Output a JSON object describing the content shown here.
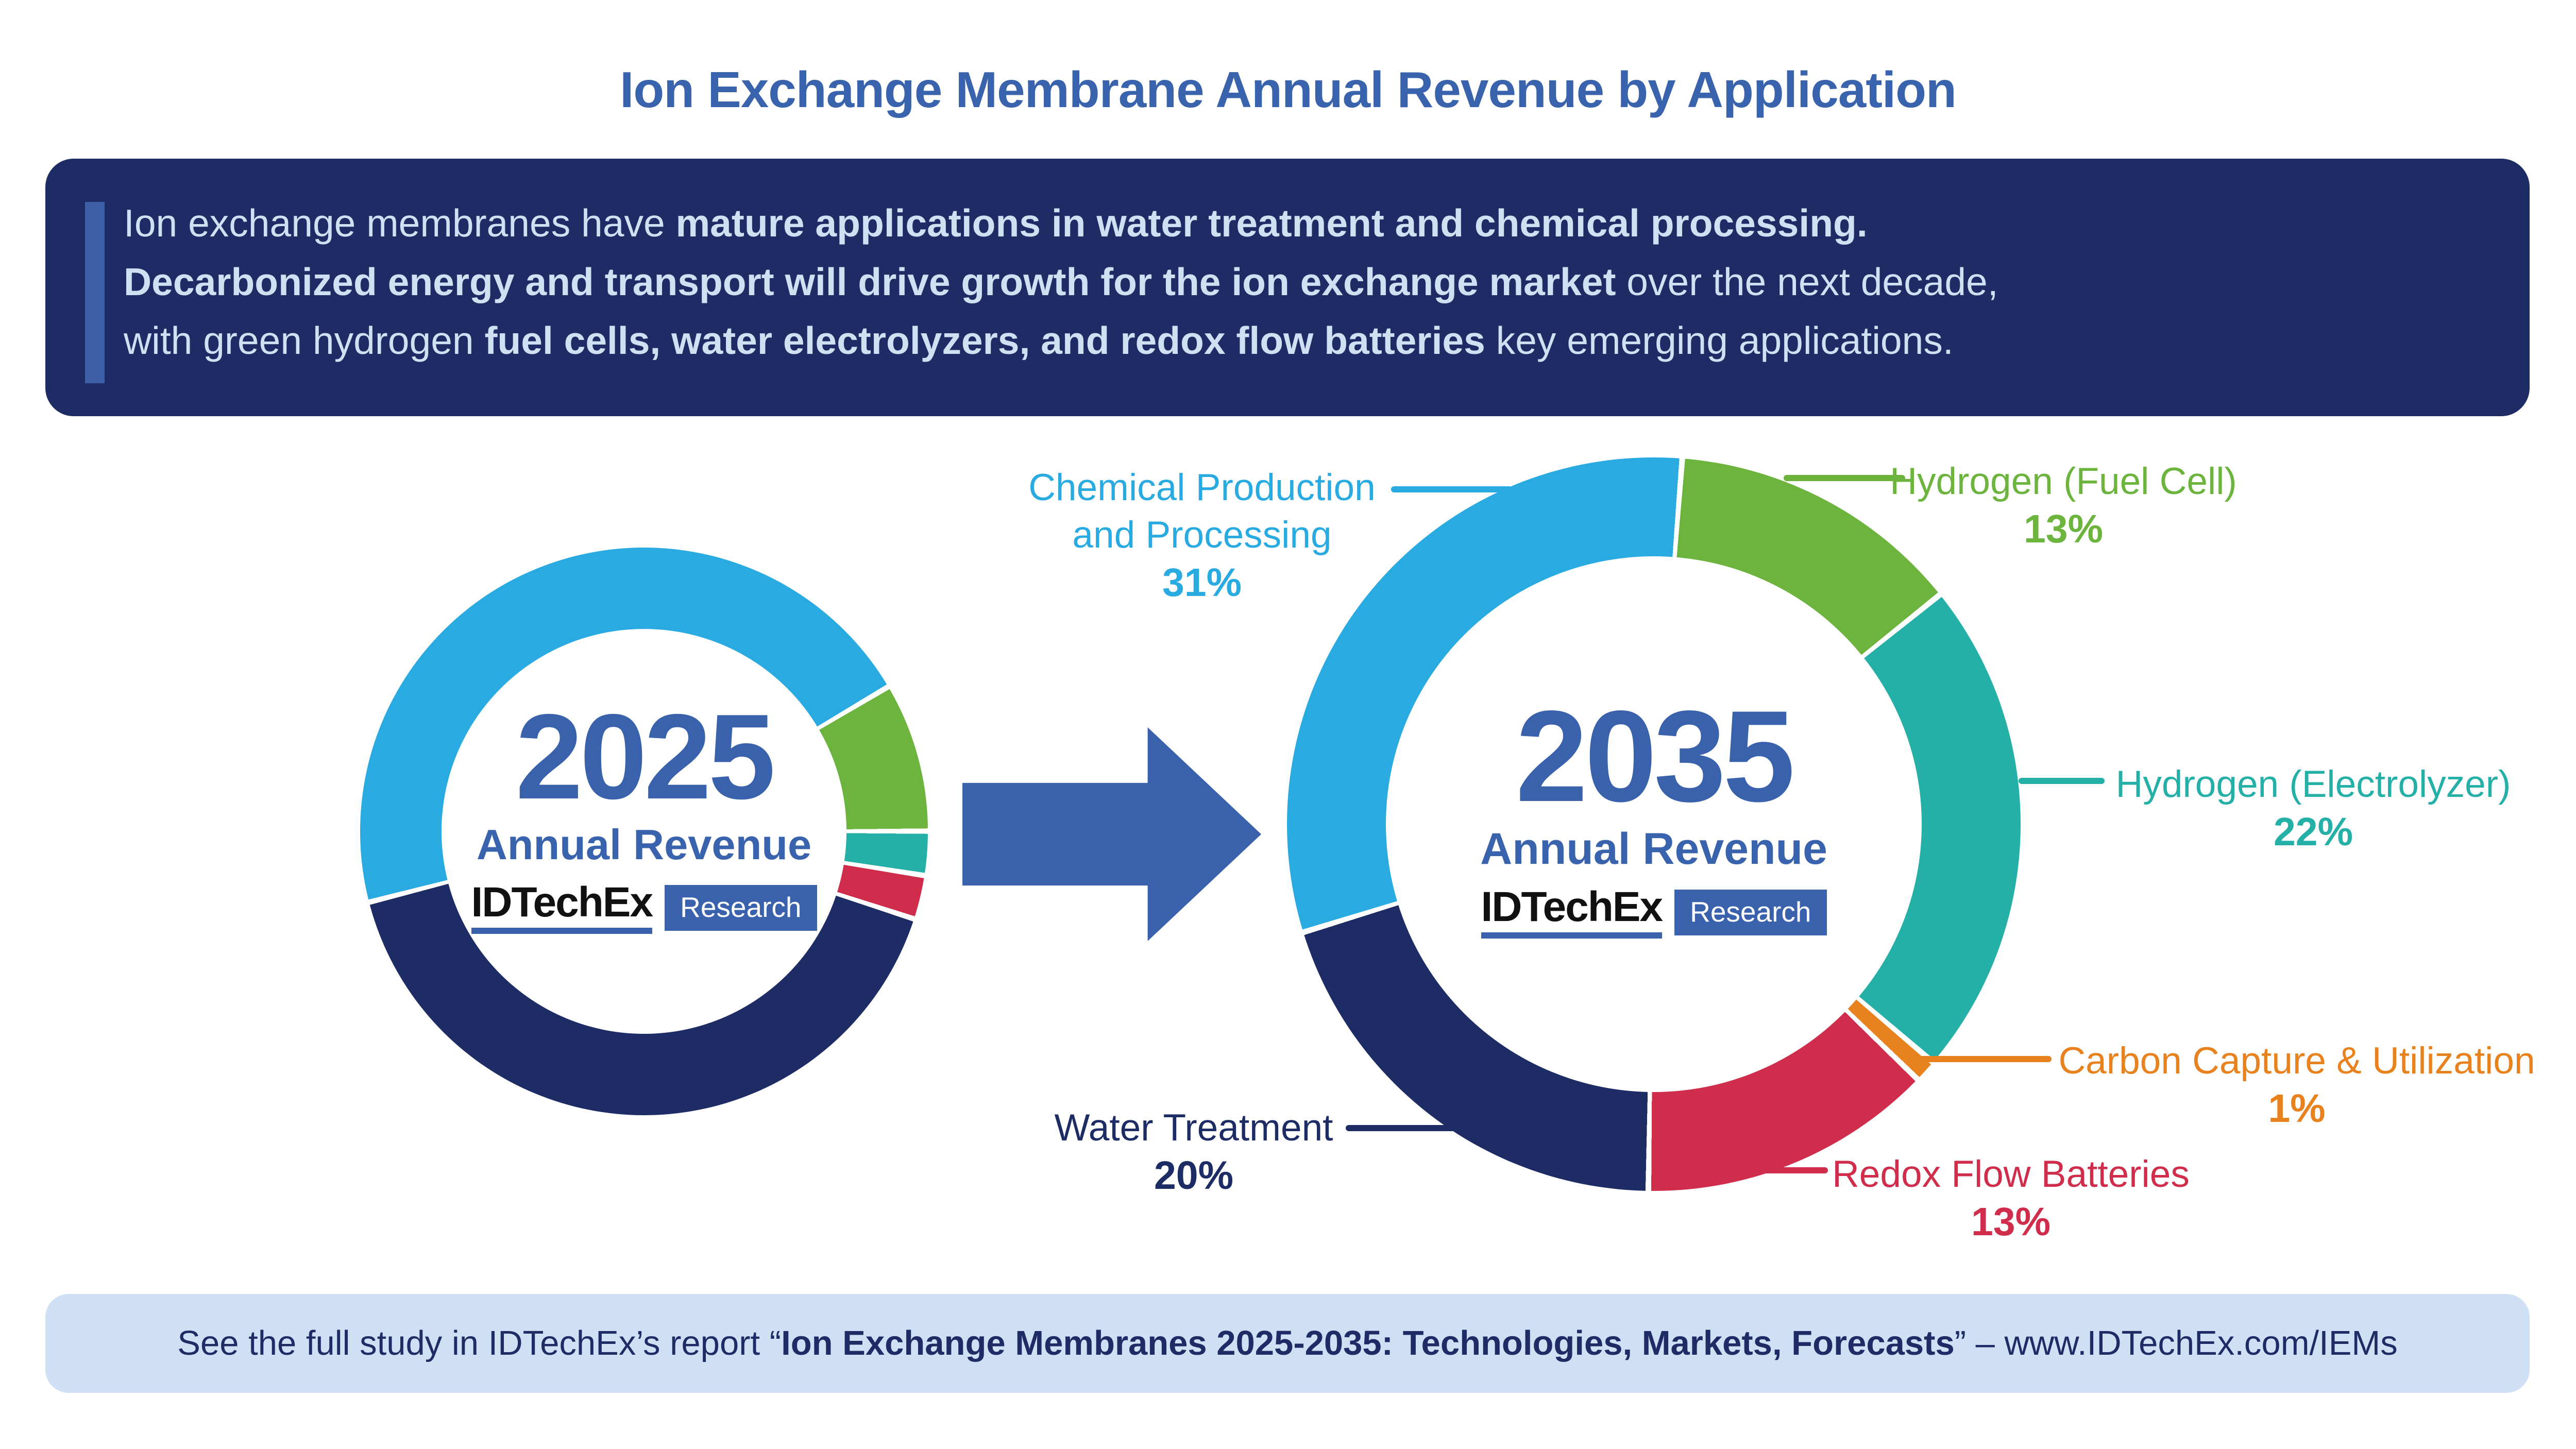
{
  "title": "Ion Exchange Membrane Annual Revenue by Application",
  "summary_box": {
    "background": "#1e2c66",
    "accent_color": "#3c5fa7",
    "text_color": "#cfe0f2",
    "lines": [
      {
        "runs": [
          {
            "text": "Ion exchange membranes have ",
            "bold": false
          },
          {
            "text": "mature applications in water treatment and chemical processing.",
            "bold": true
          }
        ]
      },
      {
        "runs": [
          {
            "text": "Decarbonized energy and transport will drive growth for the ion exchange market",
            "bold": true
          },
          {
            "text": " over the next decade,",
            "bold": false
          }
        ]
      },
      {
        "runs": [
          {
            "text": "with green hydrogen ",
            "bold": false
          },
          {
            "text": "fuel cells, water electrolyzers, and redox flow batteries",
            "bold": true
          },
          {
            "text": " key emerging applications.",
            "bold": false
          }
        ]
      }
    ]
  },
  "logo": {
    "brand": "IDTechEx",
    "badge": "Research",
    "underline_color": "#3a62ac",
    "badge_bg": "#3a62ac"
  },
  "arrow_color": "#3a62ac",
  "chart_data": {
    "type": "pie",
    "subtype": "donut",
    "title": "Ion Exchange Membrane Annual Revenue by Application",
    "legend_position": "callouts",
    "charts": [
      {
        "year": "2025",
        "subtitle": "Annual Revenue",
        "start_angle_deg": 255,
        "labels_shown": false,
        "values_estimated_from_arc_lengths": true,
        "segments": [
          {
            "name": "Chemical Production and Processing",
            "color": "#29abe2",
            "value": 45.5
          },
          {
            "name": "Hydrogen (Fuel Cell)",
            "color": "#6cb43d",
            "value": 8.5
          },
          {
            "name": "Hydrogen (Electrolyzer)",
            "color": "#24b0a6",
            "value": 2.5
          },
          {
            "name": "Redox Flow Batteries",
            "color": "#d02c4c",
            "value": 2.5
          },
          {
            "name": "Water Treatment",
            "color": "#1e2c66",
            "value": 41
          }
        ]
      },
      {
        "year": "2035",
        "subtitle": "Annual Revenue",
        "start_angle_deg": 4,
        "labels_shown": true,
        "segments": [
          {
            "name": "Hydrogen (Fuel Cell)",
            "color": "#6cb43d",
            "value": 13,
            "pct_label": "13%"
          },
          {
            "name": "Hydrogen (Electrolyzer)",
            "color": "#24b0a6",
            "value": 22,
            "pct_label": "22%"
          },
          {
            "name": "Carbon Capture & Utilization",
            "color": "#e8821e",
            "value": 1,
            "pct_label": "1%"
          },
          {
            "name": "Redox Flow Batteries",
            "color": "#d02c4c",
            "value": 13,
            "pct_label": "13%"
          },
          {
            "name": "Water Treatment",
            "color": "#1e2c66",
            "value": 20,
            "pct_label": "20%"
          },
          {
            "name": "Chemical Production and Processing",
            "color": "#29abe2",
            "value": 31,
            "pct_label": "31%"
          }
        ]
      }
    ]
  },
  "callouts": [
    {
      "id": "chemical-production",
      "line1": "Chemical Production",
      "line2": "and Processing",
      "pct": "31%",
      "color": "#29abe2"
    },
    {
      "id": "hydrogen-fuel-cell",
      "line1": "Hydrogen (Fuel Cell)",
      "line2": "",
      "pct": "13%",
      "color": "#6cb43d"
    },
    {
      "id": "hydrogen-electrolyzer",
      "line1": "Hydrogen (Electrolyzer)",
      "line2": "",
      "pct": "22%",
      "color": "#24b0a6"
    },
    {
      "id": "carbon-capture-utilization",
      "line1": "Carbon Capture & Utilization",
      "line2": "",
      "pct": "1%",
      "color": "#e8821e"
    },
    {
      "id": "redox-flow-batteries",
      "line1": "Redox Flow Batteries",
      "line2": "",
      "pct": "13%",
      "color": "#d02c4c"
    },
    {
      "id": "water-treatment",
      "line1": "Water Treatment",
      "line2": "",
      "pct": "20%",
      "color": "#1e2c66"
    }
  ],
  "footer": {
    "background": "#cfe0f5",
    "text_color": "#1e2c66",
    "runs": [
      {
        "text": "See the full study in IDTechEx’s report “",
        "bold": false
      },
      {
        "text": "Ion Exchange Membranes 2025-2035: Technologies, Markets, Forecasts",
        "bold": true
      },
      {
        "text": "” – ",
        "bold": false
      },
      {
        "text": "www.IDTechEx.com/IEMs",
        "bold": false
      }
    ]
  }
}
